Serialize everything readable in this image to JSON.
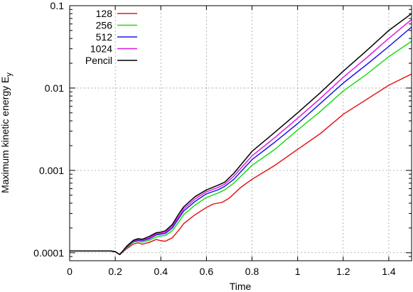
{
  "chart_data": {
    "type": "line",
    "xlabel": "Time",
    "ylabel_main": "Maximum kinetic energy E",
    "ylabel_sub": "y",
    "xlim": [
      0,
      1.5
    ],
    "ylim": [
      8e-05,
      0.1
    ],
    "yscale": "log",
    "grid": true,
    "legend_position": "top-left",
    "x_ticks": [
      {
        "value": 0,
        "label": "0"
      },
      {
        "value": 0.2,
        "label": "0.2"
      },
      {
        "value": 0.4,
        "label": "0.4"
      },
      {
        "value": 0.6,
        "label": "0.6"
      },
      {
        "value": 0.8,
        "label": "0.8"
      },
      {
        "value": 1.0,
        "label": "1"
      },
      {
        "value": 1.2,
        "label": "1.2"
      },
      {
        "value": 1.4,
        "label": "1.4"
      }
    ],
    "y_ticks": [
      {
        "value": 0.0001,
        "label": "0.0001"
      },
      {
        "value": 0.001,
        "label": "0.001"
      },
      {
        "value": 0.01,
        "label": "0.01"
      },
      {
        "value": 0.1,
        "label": "0.1"
      }
    ],
    "series": [
      {
        "name": "128",
        "color": "#e41a1c",
        "points": [
          [
            0,
            0.000105
          ],
          [
            0.1,
            0.000105
          ],
          [
            0.18,
            0.000105
          ],
          [
            0.2,
            0.000103
          ],
          [
            0.22,
            9.5e-05
          ],
          [
            0.25,
            0.000112
          ],
          [
            0.28,
            0.000128
          ],
          [
            0.3,
            0.000132
          ],
          [
            0.32,
            0.000127
          ],
          [
            0.35,
            0.000134
          ],
          [
            0.38,
            0.000145
          ],
          [
            0.4,
            0.00014
          ],
          [
            0.42,
            0.000138
          ],
          [
            0.45,
            0.000152
          ],
          [
            0.48,
            0.00019
          ],
          [
            0.5,
            0.000225
          ],
          [
            0.55,
            0.00029
          ],
          [
            0.6,
            0.000355
          ],
          [
            0.63,
            0.00039
          ],
          [
            0.67,
            0.00041
          ],
          [
            0.7,
            0.00046
          ],
          [
            0.75,
            0.00062
          ],
          [
            0.8,
            0.00078
          ],
          [
            0.9,
            0.00115
          ],
          [
            1.0,
            0.0018
          ],
          [
            1.1,
            0.0028
          ],
          [
            1.2,
            0.0048
          ],
          [
            1.3,
            0.0072
          ],
          [
            1.4,
            0.0108
          ],
          [
            1.5,
            0.0148
          ]
        ]
      },
      {
        "name": "256",
        "color": "#1adb1a",
        "points": [
          [
            0,
            0.000105
          ],
          [
            0.1,
            0.000105
          ],
          [
            0.18,
            0.000105
          ],
          [
            0.2,
            0.000103
          ],
          [
            0.22,
            9.5e-05
          ],
          [
            0.25,
            0.000115
          ],
          [
            0.28,
            0.000135
          ],
          [
            0.3,
            0.000138
          ],
          [
            0.32,
            0.000135
          ],
          [
            0.35,
            0.000142
          ],
          [
            0.38,
            0.000155
          ],
          [
            0.4,
            0.00016
          ],
          [
            0.42,
            0.000162
          ],
          [
            0.45,
            0.000185
          ],
          [
            0.48,
            0.00024
          ],
          [
            0.5,
            0.00029
          ],
          [
            0.55,
            0.00038
          ],
          [
            0.6,
            0.00047
          ],
          [
            0.65,
            0.00053
          ],
          [
            0.68,
            0.00058
          ],
          [
            0.72,
            0.0007
          ],
          [
            0.8,
            0.00115
          ],
          [
            0.9,
            0.0018
          ],
          [
            1.0,
            0.0031
          ],
          [
            1.1,
            0.0052
          ],
          [
            1.2,
            0.0092
          ],
          [
            1.3,
            0.0145
          ],
          [
            1.4,
            0.024
          ],
          [
            1.5,
            0.037
          ]
        ]
      },
      {
        "name": "512",
        "color": "#1a1ae6",
        "points": [
          [
            0,
            0.000105
          ],
          [
            0.1,
            0.000105
          ],
          [
            0.18,
            0.000105
          ],
          [
            0.2,
            0.000103
          ],
          [
            0.22,
            9.5e-05
          ],
          [
            0.25,
            0.000117
          ],
          [
            0.28,
            0.000138
          ],
          [
            0.3,
            0.000142
          ],
          [
            0.32,
            0.00014
          ],
          [
            0.35,
            0.000148
          ],
          [
            0.38,
            0.000165
          ],
          [
            0.4,
            0.000168
          ],
          [
            0.42,
            0.000172
          ],
          [
            0.45,
            0.0002
          ],
          [
            0.48,
            0.000265
          ],
          [
            0.5,
            0.00032
          ],
          [
            0.55,
            0.00042
          ],
          [
            0.6,
            0.00052
          ],
          [
            0.65,
            0.00058
          ],
          [
            0.68,
            0.00064
          ],
          [
            0.72,
            0.00078
          ],
          [
            0.8,
            0.00135
          ],
          [
            0.9,
            0.0022
          ],
          [
            1.0,
            0.0037
          ],
          [
            1.1,
            0.0065
          ],
          [
            1.2,
            0.0115
          ],
          [
            1.3,
            0.019
          ],
          [
            1.4,
            0.032
          ],
          [
            1.5,
            0.055
          ]
        ]
      },
      {
        "name": "1024",
        "color": "#e01ae0",
        "points": [
          [
            0,
            0.000105
          ],
          [
            0.1,
            0.000105
          ],
          [
            0.18,
            0.000105
          ],
          [
            0.2,
            0.000103
          ],
          [
            0.22,
            9.5e-05
          ],
          [
            0.25,
            0.000118
          ],
          [
            0.28,
            0.00014
          ],
          [
            0.3,
            0.000145
          ],
          [
            0.32,
            0.000143
          ],
          [
            0.35,
            0.000152
          ],
          [
            0.38,
            0.00017
          ],
          [
            0.4,
            0.000172
          ],
          [
            0.42,
            0.000178
          ],
          [
            0.45,
            0.00021
          ],
          [
            0.48,
            0.00028
          ],
          [
            0.5,
            0.00034
          ],
          [
            0.55,
            0.00045
          ],
          [
            0.6,
            0.00055
          ],
          [
            0.65,
            0.00062
          ],
          [
            0.68,
            0.00068
          ],
          [
            0.72,
            0.00085
          ],
          [
            0.8,
            0.0015
          ],
          [
            0.9,
            0.0025
          ],
          [
            1.0,
            0.0043
          ],
          [
            1.1,
            0.0075
          ],
          [
            1.2,
            0.0135
          ],
          [
            1.3,
            0.023
          ],
          [
            1.4,
            0.04
          ],
          [
            1.5,
            0.068
          ]
        ]
      },
      {
        "name": "Pencil",
        "color": "#000000",
        "points": [
          [
            0,
            0.000105
          ],
          [
            0.1,
            0.000105
          ],
          [
            0.18,
            0.000105
          ],
          [
            0.2,
            0.000103
          ],
          [
            0.22,
            9.5e-05
          ],
          [
            0.25,
            0.00012
          ],
          [
            0.28,
            0.000142
          ],
          [
            0.3,
            0.000148
          ],
          [
            0.32,
            0.000146
          ],
          [
            0.35,
            0.000158
          ],
          [
            0.38,
            0.000175
          ],
          [
            0.4,
            0.000178
          ],
          [
            0.42,
            0.000185
          ],
          [
            0.45,
            0.00022
          ],
          [
            0.48,
            0.0003
          ],
          [
            0.5,
            0.00036
          ],
          [
            0.55,
            0.00048
          ],
          [
            0.6,
            0.00058
          ],
          [
            0.65,
            0.00066
          ],
          [
            0.68,
            0.00072
          ],
          [
            0.72,
            0.00092
          ],
          [
            0.8,
            0.0017
          ],
          [
            0.9,
            0.0029
          ],
          [
            1.0,
            0.005
          ],
          [
            1.1,
            0.0088
          ],
          [
            1.2,
            0.016
          ],
          [
            1.3,
            0.028
          ],
          [
            1.4,
            0.05
          ],
          [
            1.5,
            0.08
          ]
        ]
      }
    ]
  }
}
